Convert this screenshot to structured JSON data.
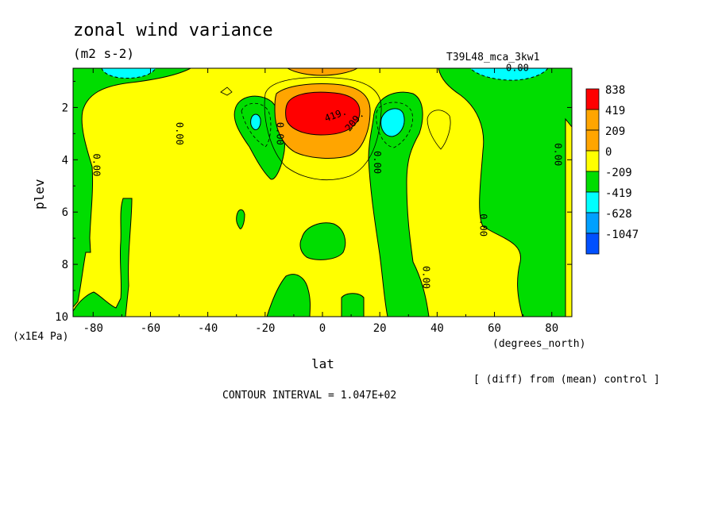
{
  "chart_data": {
    "type": "heatmap",
    "title": "zonal wind variance",
    "units": "(m2 s-2)",
    "experiment": "T39L48_mca_3kw1",
    "xlabel": "lat",
    "xunits": "(degrees_north)",
    "ylabel": "plev",
    "yunits": "(x1E4 Pa)",
    "xlim": [
      -87,
      87
    ],
    "ylim": [
      0.5,
      10
    ],
    "y_inverted": true,
    "x_ticks": [
      "-80",
      "-60",
      "-40",
      "-20",
      "0",
      "20",
      "40",
      "60",
      "80"
    ],
    "x_tick_values": [
      -80,
      -60,
      -40,
      -20,
      0,
      20,
      40,
      60,
      80
    ],
    "y_ticks": [
      "2",
      "4",
      "6",
      "8",
      "10"
    ],
    "y_tick_values": [
      2,
      4,
      6,
      8,
      10
    ],
    "contour_interval": "CONTOUR INTERVAL = 1.047E+02",
    "note": "[ (diff) from (mean) control ]",
    "legend": {
      "labels": [
        "838",
        "419",
        "209",
        "0",
        "-209",
        "-419",
        "-628",
        "-1047"
      ],
      "colors": [
        "#ff0000",
        "#ffa500",
        "#ffa500",
        "#ffff00",
        "#00dd00",
        "#00ffff",
        "#00a0ff",
        "#0050ff"
      ]
    },
    "contour_labels": [
      "0.00",
      "0.00",
      "0.00",
      "0.00",
      "0.00",
      "0.00",
      "0.00",
      "0.00",
      "419.",
      "209."
    ],
    "regions": [
      {
        "level": "0 to 209",
        "color": "#ffff00",
        "note": "background positive field"
      },
      {
        "level": ">= 419",
        "color": "#ff0000",
        "lat": [
          -12,
          12
        ],
        "plev": [
          1.2,
          2.5
        ]
      },
      {
        "level": "209 to 419",
        "color": "#ffa500",
        "lat": [
          -17,
          17
        ],
        "plev": [
          0.9,
          3.6
        ]
      },
      {
        "level": "-209 to 0",
        "color": "#00dd00",
        "lat": [
          -87,
          -72
        ],
        "plev": [
          0.5,
          10
        ]
      },
      {
        "level": "-209 to 0",
        "color": "#00dd00",
        "lat": [
          22,
          38
        ],
        "plev": [
          1.0,
          10
        ]
      },
      {
        "level": "-209 to 0",
        "color": "#00dd00",
        "lat": [
          58,
          87
        ],
        "plev": [
          0.5,
          10
        ]
      },
      {
        "level": "-419 to -209",
        "color": "#00ffff",
        "lat": [
          20,
          30
        ],
        "plev": [
          1.7,
          2.8
        ]
      },
      {
        "level": "-419 to -209",
        "color": "#00ffff",
        "lat": [
          -27,
          -23
        ],
        "plev": [
          2.0,
          2.5
        ]
      }
    ]
  }
}
